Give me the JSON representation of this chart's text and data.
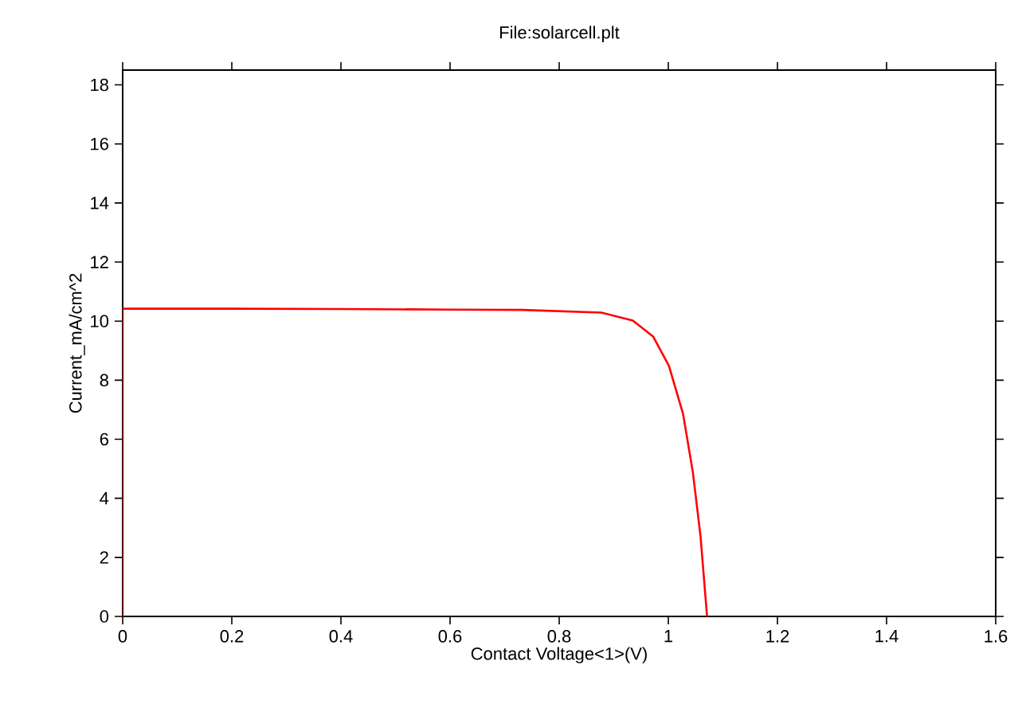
{
  "chart_data": {
    "type": "line",
    "title": "File:solarcell.plt",
    "xlabel": "Contact Voltage<1>(V)",
    "ylabel": "Current_mA/cm^2",
    "x": [
      0,
      0,
      0.2,
      0.4,
      0.6,
      0.732,
      0.877,
      0.935,
      0.972,
      1.001,
      1.027,
      1.045,
      1.059,
      1.071
    ],
    "series": [
      {
        "color": "#ff0000",
        "values": [
          0,
          10.42,
          10.42,
          10.41,
          10.39,
          10.38,
          10.29,
          10.02,
          9.48,
          8.49,
          6.86,
          4.88,
          2.72,
          0
        ]
      }
    ],
    "xlim": [
      0,
      1.6
    ],
    "ylim": [
      0,
      18.5
    ],
    "xticks": [
      0,
      0.2,
      0.4,
      0.6,
      0.8,
      1,
      1.2,
      1.4,
      1.6
    ],
    "yticks": [
      0,
      2,
      4,
      6,
      8,
      10,
      12,
      14,
      16,
      18
    ],
    "marker": "none",
    "line_style": "solid"
  }
}
